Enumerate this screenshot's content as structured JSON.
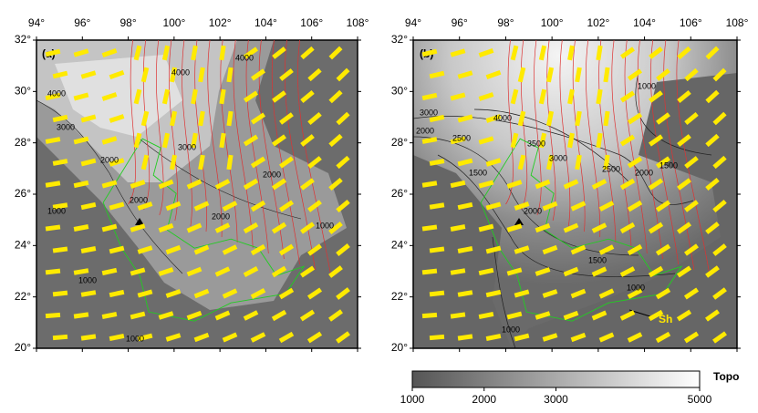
{
  "panels": [
    {
      "label": "(a)",
      "lon_ticks": [
        {
          "value": 94,
          "label": "94°"
        },
        {
          "value": 96,
          "label": "96°"
        },
        {
          "value": 98,
          "label": "98°"
        },
        {
          "value": 100,
          "label": "100°"
        },
        {
          "value": 102,
          "label": "102°"
        },
        {
          "value": 104,
          "label": "104°"
        },
        {
          "value": 106,
          "label": "106°"
        },
        {
          "value": 108,
          "label": "108°"
        }
      ],
      "lat_ticks": [
        {
          "value": 20,
          "label": "20°"
        },
        {
          "value": 22,
          "label": "22°"
        },
        {
          "value": 24,
          "label": "24°"
        },
        {
          "value": 26,
          "label": "26°"
        },
        {
          "value": 28,
          "label": "28°"
        },
        {
          "value": 30,
          "label": "30°"
        },
        {
          "value": 32,
          "label": "32°"
        }
      ],
      "contour_labels": [
        "4000",
        "4000",
        "4000",
        "3000",
        "2000",
        "2000",
        "2000",
        "1000",
        "1000",
        "1000",
        "1000",
        "3000",
        "2000"
      ]
    },
    {
      "label": "(b)",
      "lon_ticks": [
        {
          "value": 94,
          "label": "94°"
        },
        {
          "value": 96,
          "label": "96°"
        },
        {
          "value": 98,
          "label": "98°"
        },
        {
          "value": 100,
          "label": "100°"
        },
        {
          "value": 102,
          "label": "102°"
        },
        {
          "value": 104,
          "label": "104°"
        },
        {
          "value": 106,
          "label": "106°"
        },
        {
          "value": 108,
          "label": "108°"
        }
      ],
      "lat_ticks": [
        {
          "value": 20,
          "label": "20°"
        },
        {
          "value": 22,
          "label": "22°"
        },
        {
          "value": 24,
          "label": "24°"
        },
        {
          "value": 26,
          "label": "26°"
        },
        {
          "value": 28,
          "label": "28°"
        },
        {
          "value": 30,
          "label": "30°"
        },
        {
          "value": 32,
          "label": "32°"
        }
      ],
      "contour_labels": [
        "3000",
        "2000",
        "4000",
        "2500",
        "3500",
        "3000",
        "2500",
        "1500",
        "2000",
        "1500",
        "1000",
        "1500",
        "2000",
        "1000",
        "1000"
      ],
      "annotation": "Sh"
    }
  ],
  "colorbar": {
    "title": "Topo",
    "range": [
      1000,
      5000
    ],
    "ticks": [
      1000,
      2000,
      3000,
      5000
    ]
  }
}
